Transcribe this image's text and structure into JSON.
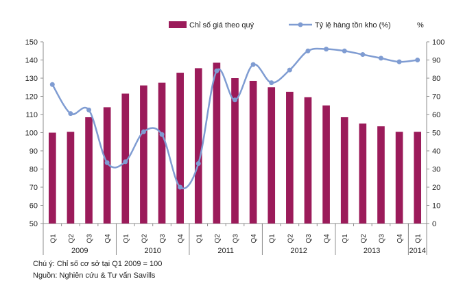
{
  "chart_data": {
    "type": "bar+line",
    "legend": {
      "bar_label": "Chỉ số giá theo quý",
      "line_label": "Tỷ lệ hàng tồn kho (%)",
      "right_unit": "%"
    },
    "quarters": [
      "Q1",
      "Q2",
      "Q3",
      "Q4",
      "Q1",
      "Q2",
      "Q3",
      "Q4",
      "Q1",
      "Q2",
      "Q3",
      "Q4",
      "Q1",
      "Q2",
      "Q3",
      "Q4",
      "Q1",
      "Q2",
      "Q3",
      "Q4",
      "Q1"
    ],
    "years": [
      {
        "label": "2009",
        "count": 4
      },
      {
        "label": "2010",
        "count": 4
      },
      {
        "label": "2011",
        "count": 4
      },
      {
        "label": "2012",
        "count": 4
      },
      {
        "label": "2013",
        "count": 4
      },
      {
        "label": "2014",
        "count": 1
      }
    ],
    "series": [
      {
        "name": "Chỉ số giá theo quý",
        "type": "bar",
        "axis": "left",
        "color": "#9b1b5a",
        "values": [
          100,
          100.5,
          108.5,
          114,
          121.5,
          126,
          127.5,
          133,
          135.5,
          138.5,
          130,
          128.5,
          125,
          122.5,
          119.5,
          115,
          108.5,
          105,
          103.5,
          100.5,
          100.5
        ]
      },
      {
        "name": "Tỷ lệ hàng tồn kho (%)",
        "type": "line",
        "axis": "right",
        "color": "#7f9cd2",
        "values": [
          76.5,
          60.5,
          62.5,
          33.5,
          34,
          50.5,
          49,
          20,
          33,
          84,
          68,
          87.5,
          77.5,
          84.5,
          95,
          96,
          95,
          93,
          91,
          89,
          90
        ]
      }
    ],
    "y_left": {
      "min": 50,
      "max": 150,
      "ticks": [
        50,
        60,
        70,
        80,
        90,
        100,
        110,
        120,
        130,
        140,
        150
      ]
    },
    "y_right": {
      "min": 0,
      "max": 100,
      "ticks": [
        0,
        10,
        20,
        30,
        40,
        50,
        60,
        70,
        80,
        90,
        100
      ]
    },
    "legend_position": "top",
    "grid": false
  },
  "notes": {
    "line1": "Chú ý: Chỉ số cơ sở tại Q1 2009 = 100",
    "line2": "Nguồn: Nghiên cứu & Tư vấn Savills"
  }
}
